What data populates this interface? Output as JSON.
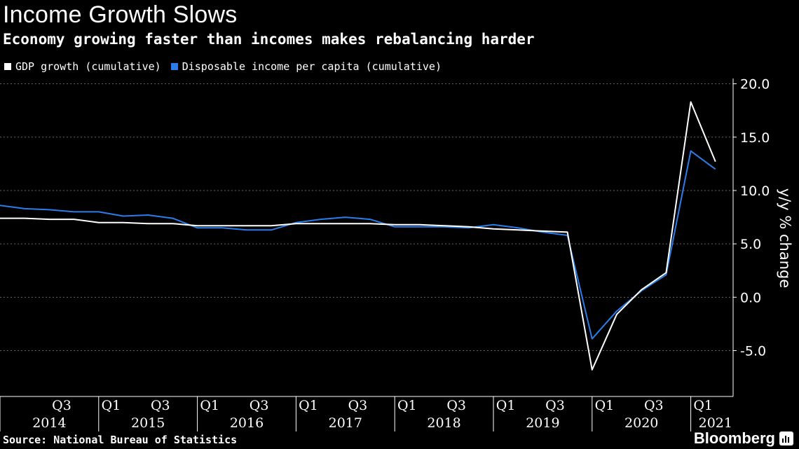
{
  "header": {
    "title": "Income Growth Slows",
    "subtitle": "Economy growing faster than incomes makes rebalancing harder"
  },
  "footer": {
    "source": "Source: National Bureau of Statistics",
    "brand": "Bloomberg",
    "brand_icon": "bloomberg-logo-icon"
  },
  "colors": {
    "background": "#000000",
    "gdp": "#ffffff",
    "income": "#2b7de9",
    "grid": "#666666"
  },
  "chart_data": {
    "type": "line",
    "ylabel": "y/y % change",
    "ylim": [
      -9.3,
      20.5
    ],
    "yticks": [
      -5.0,
      0.0,
      5.0,
      10.0,
      15.0,
      20.0
    ],
    "ytick_labels": [
      "-5.0",
      "0.0",
      "5.0",
      "10.0",
      "15.0",
      "20.0"
    ],
    "grid": "horizontal dashed",
    "legend_position": "top-left",
    "x": [
      "2014 Q1",
      "2014 Q2",
      "2014 Q3",
      "2014 Q4",
      "2015 Q1",
      "2015 Q2",
      "2015 Q3",
      "2015 Q4",
      "2016 Q1",
      "2016 Q2",
      "2016 Q3",
      "2016 Q4",
      "2017 Q1",
      "2017 Q2",
      "2017 Q3",
      "2017 Q4",
      "2018 Q1",
      "2018 Q2",
      "2018 Q3",
      "2018 Q4",
      "2019 Q1",
      "2019 Q2",
      "2019 Q3",
      "2019 Q4",
      "2020 Q1",
      "2020 Q2",
      "2020 Q3",
      "2020 Q4",
      "2021 Q1",
      "2021 Q2"
    ],
    "x_tick_labels": [
      {
        "index": 2,
        "label": "Q3"
      },
      {
        "index": 4,
        "label": "Q1"
      },
      {
        "index": 6,
        "label": "Q3"
      },
      {
        "index": 8,
        "label": "Q1"
      },
      {
        "index": 10,
        "label": "Q3"
      },
      {
        "index": 12,
        "label": "Q1"
      },
      {
        "index": 14,
        "label": "Q3"
      },
      {
        "index": 16,
        "label": "Q1"
      },
      {
        "index": 18,
        "label": "Q3"
      },
      {
        "index": 20,
        "label": "Q1"
      },
      {
        "index": 22,
        "label": "Q3"
      },
      {
        "index": 24,
        "label": "Q1"
      },
      {
        "index": 26,
        "label": "Q3"
      },
      {
        "index": 28,
        "label": "Q1"
      }
    ],
    "year_labels": [
      {
        "label": "2014",
        "start": 0,
        "end": 4
      },
      {
        "label": "2015",
        "start": 4,
        "end": 8
      },
      {
        "label": "2016",
        "start": 8,
        "end": 12
      },
      {
        "label": "2017",
        "start": 12,
        "end": 16
      },
      {
        "label": "2018",
        "start": 16,
        "end": 20
      },
      {
        "label": "2019",
        "start": 20,
        "end": 24
      },
      {
        "label": "2020",
        "start": 24,
        "end": 28
      },
      {
        "label": "2021",
        "start": 28,
        "end": 30
      }
    ],
    "series": [
      {
        "name": "GDP growth (cumulative)",
        "color": "#ffffff",
        "values": [
          7.4,
          7.4,
          7.3,
          7.3,
          7.0,
          7.0,
          6.9,
          6.9,
          6.7,
          6.7,
          6.7,
          6.7,
          6.9,
          6.9,
          6.9,
          6.9,
          6.8,
          6.8,
          6.7,
          6.6,
          6.4,
          6.3,
          6.2,
          6.1,
          -6.8,
          -1.6,
          0.7,
          2.3,
          18.3,
          12.7
        ]
      },
      {
        "name": "Disposable income per capita (cumulative)",
        "color": "#2b7de9",
        "values": [
          8.6,
          8.3,
          8.2,
          8.0,
          8.0,
          7.6,
          7.7,
          7.4,
          6.5,
          6.5,
          6.3,
          6.3,
          7.0,
          7.3,
          7.5,
          7.3,
          6.6,
          6.6,
          6.6,
          6.5,
          6.8,
          6.5,
          6.1,
          5.8,
          -3.9,
          -1.3,
          0.6,
          2.1,
          13.7,
          12.0
        ]
      }
    ]
  }
}
